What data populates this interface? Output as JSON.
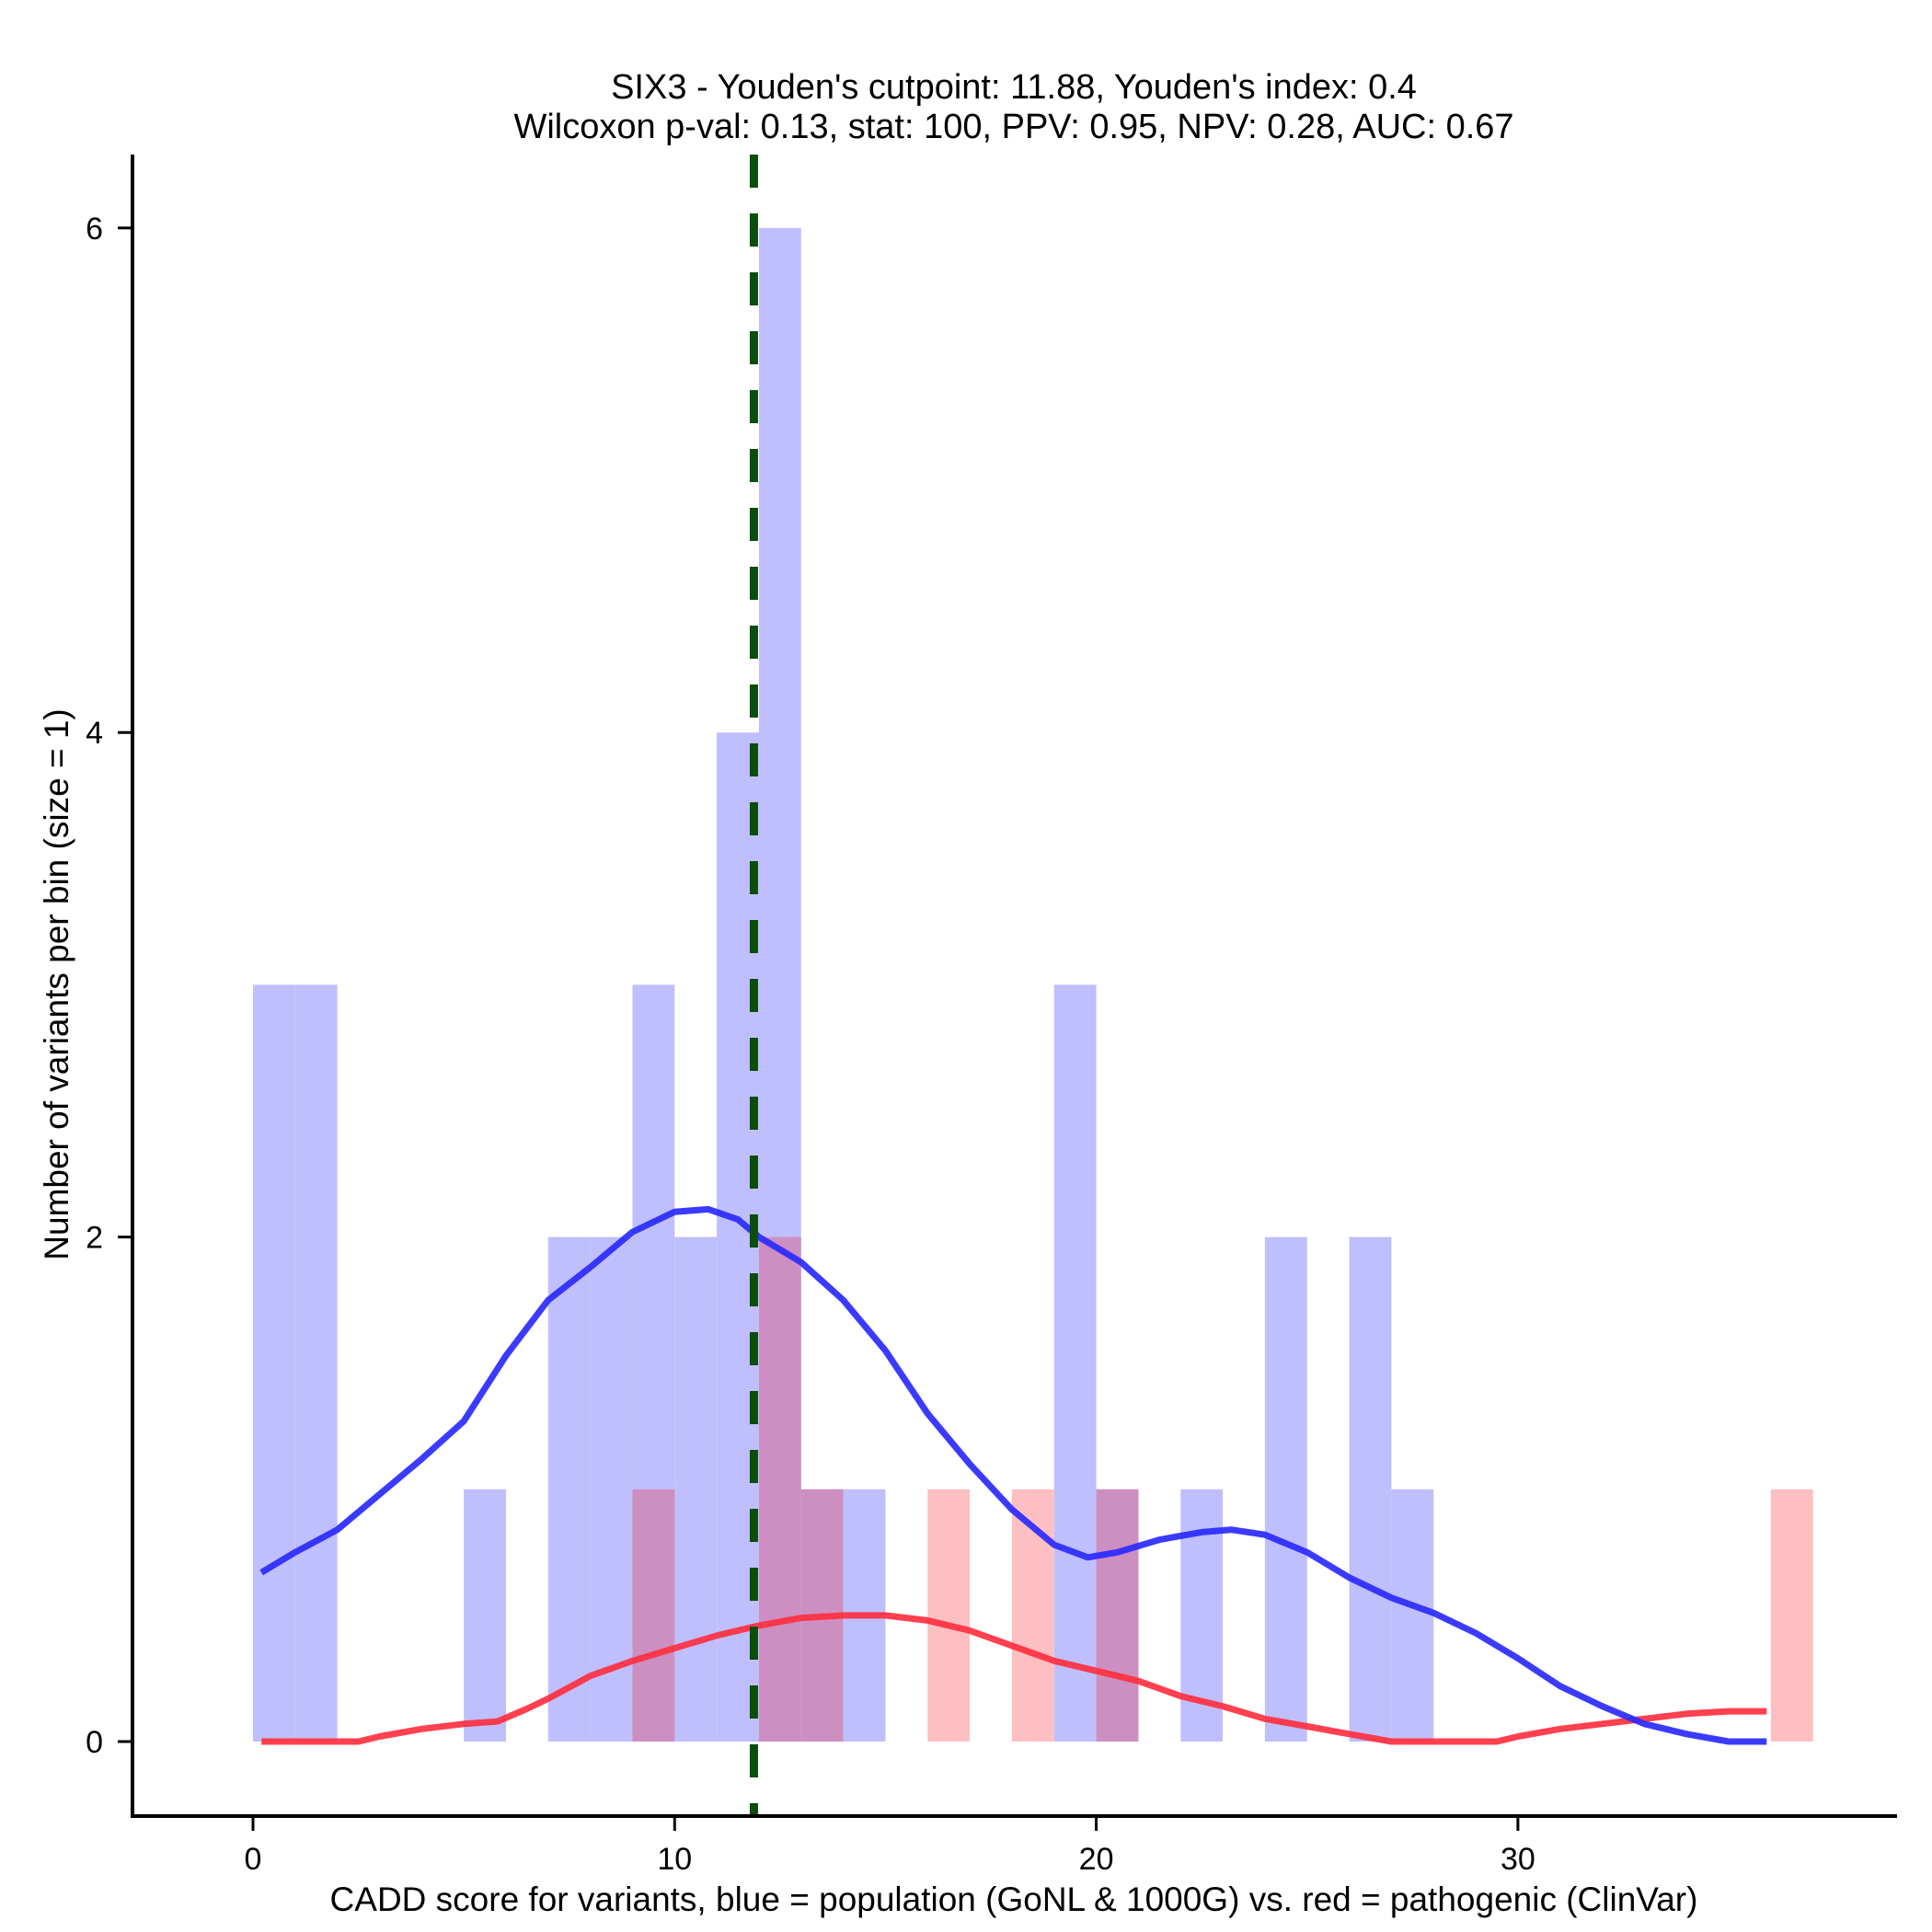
{
  "chart_data": {
    "type": "bar",
    "subtype": "overlaid histogram with density curves",
    "title": [
      "SIX3 - Youden's cutpoint: 11.88, Youden's index: 0.4",
      "Wilcoxon p-val: 0.13, stat: 100, PPV: 0.95, NPV: 0.28, AUC: 0.67"
    ],
    "xlabel": "CADD score for variants, blue = population (GoNL & 1000G) vs. red = pathogenic (ClinVar)",
    "ylabel": "Number of variants per bin (size = 1)",
    "xlim": [
      -3,
      39
    ],
    "ylim": [
      -0.3,
      6.3
    ],
    "x_ticks": [
      0,
      10,
      20,
      30
    ],
    "x_tick_labels": [
      "0",
      "10",
      "20",
      "30"
    ],
    "y_ticks": [
      0,
      2,
      4,
      6
    ],
    "y_tick_labels": [
      "0",
      "2",
      "4",
      "6"
    ],
    "grid": false,
    "bin_width": 1,
    "cutpoint": 11.88,
    "series": [
      {
        "name": "population (GoNL & 1000G)",
        "color": "#0000ff",
        "bar_color": "#bfbffd",
        "bins": [
          {
            "start": 0,
            "count": 3
          },
          {
            "start": 1,
            "count": 3
          },
          {
            "start": 5,
            "count": 1
          },
          {
            "start": 7,
            "count": 2
          },
          {
            "start": 8,
            "count": 2
          },
          {
            "start": 9,
            "count": 3
          },
          {
            "start": 10,
            "count": 2
          },
          {
            "start": 11,
            "count": 4
          },
          {
            "start": 12,
            "count": 6
          },
          {
            "start": 13,
            "count": 1
          },
          {
            "start": 14,
            "count": 1
          },
          {
            "start": 19,
            "count": 3
          },
          {
            "start": 20,
            "count": 1
          },
          {
            "start": 22,
            "count": 1
          },
          {
            "start": 24,
            "count": 2
          },
          {
            "start": 26,
            "count": 2
          },
          {
            "start": 27,
            "count": 1
          }
        ],
        "density": [
          [
            0.2,
            0.67
          ],
          [
            1,
            0.75
          ],
          [
            2,
            0.84
          ],
          [
            3,
            0.98
          ],
          [
            4,
            1.12
          ],
          [
            5,
            1.27
          ],
          [
            6,
            1.53
          ],
          [
            7,
            1.75
          ],
          [
            8,
            1.88
          ],
          [
            9,
            2.02
          ],
          [
            10,
            2.1
          ],
          [
            10.8,
            2.11
          ],
          [
            11.5,
            2.07
          ],
          [
            12,
            2.0
          ],
          [
            12.5,
            1.95
          ],
          [
            13,
            1.9
          ],
          [
            14,
            1.75
          ],
          [
            15,
            1.55
          ],
          [
            16,
            1.3
          ],
          [
            17,
            1.1
          ],
          [
            18,
            0.92
          ],
          [
            19,
            0.78
          ],
          [
            19.8,
            0.73
          ],
          [
            20.5,
            0.75
          ],
          [
            21.5,
            0.8
          ],
          [
            22.5,
            0.83
          ],
          [
            23.2,
            0.84
          ],
          [
            24,
            0.82
          ],
          [
            25,
            0.75
          ],
          [
            26,
            0.65
          ],
          [
            27,
            0.57
          ],
          [
            28,
            0.51
          ],
          [
            29,
            0.43
          ],
          [
            30,
            0.33
          ],
          [
            31,
            0.22
          ],
          [
            32,
            0.14
          ],
          [
            33,
            0.07
          ],
          [
            34,
            0.03
          ],
          [
            35,
            0.0
          ],
          [
            35.9,
            0.0
          ]
        ]
      },
      {
        "name": "pathogenic (ClinVar)",
        "color": "#ff2233",
        "bar_color": "#fdbfc1",
        "bins": [
          {
            "start": 9,
            "count": 1
          },
          {
            "start": 12,
            "count": 2
          },
          {
            "start": 13,
            "count": 1
          },
          {
            "start": 16,
            "count": 1
          },
          {
            "start": 18,
            "count": 1
          },
          {
            "start": 20,
            "count": 1
          },
          {
            "start": 36,
            "count": 1
          }
        ],
        "density": [
          [
            0.2,
            0
          ],
          [
            2.5,
            0
          ],
          [
            3,
            0.02
          ],
          [
            4,
            0.05
          ],
          [
            5,
            0.07
          ],
          [
            5.8,
            0.08
          ],
          [
            6.5,
            0.13
          ],
          [
            7,
            0.17
          ],
          [
            8,
            0.26
          ],
          [
            9,
            0.32
          ],
          [
            10,
            0.37
          ],
          [
            11,
            0.42
          ],
          [
            12,
            0.46
          ],
          [
            13,
            0.49
          ],
          [
            14,
            0.5
          ],
          [
            15,
            0.5
          ],
          [
            16,
            0.48
          ],
          [
            17,
            0.44
          ],
          [
            18,
            0.38
          ],
          [
            19,
            0.32
          ],
          [
            20,
            0.28
          ],
          [
            21,
            0.24
          ],
          [
            22,
            0.18
          ],
          [
            23,
            0.14
          ],
          [
            24,
            0.09
          ],
          [
            25,
            0.06
          ],
          [
            26,
            0.03
          ],
          [
            27,
            0
          ],
          [
            29.5,
            0
          ],
          [
            30,
            0.02
          ],
          [
            31,
            0.05
          ],
          [
            32,
            0.07
          ],
          [
            33,
            0.09
          ],
          [
            34,
            0.11
          ],
          [
            35,
            0.12
          ],
          [
            35.9,
            0.12
          ]
        ]
      }
    ],
    "overlap_color": "#cd8fc1",
    "cutpoint_color": "#0b4d0b",
    "legend": "none"
  }
}
